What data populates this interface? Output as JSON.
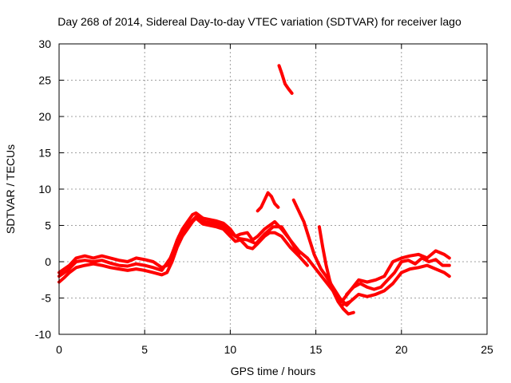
{
  "chart_data": {
    "type": "line",
    "title": "Day 268 of 2014, Sidereal Day-to-day VTEC variation (SDTVAR) for receiver lago",
    "xlabel": "GPS time / hours",
    "ylabel": "SDTVAR / TECUs",
    "xlim": [
      0,
      25
    ],
    "ylim": [
      -10,
      30
    ],
    "xticks": [
      0,
      5,
      10,
      15,
      20,
      25
    ],
    "yticks": [
      -10,
      -5,
      0,
      5,
      10,
      15,
      20,
      25,
      30
    ],
    "grid": true,
    "legend": "none",
    "color": "#ff0000",
    "series": [
      {
        "name": "trace-main-upper",
        "x": [
          0.0,
          0.3,
          0.6,
          1.0,
          1.5,
          2.0,
          2.5,
          3.0,
          3.5,
          4.0,
          4.5,
          5.0,
          5.5,
          6.0,
          6.3,
          6.6,
          6.9,
          7.2,
          7.5,
          7.8,
          8.0,
          8.4,
          8.8,
          9.2,
          9.6,
          10.0,
          10.3,
          10.6,
          11.0,
          11.3,
          11.6,
          12.0,
          12.3,
          12.6,
          13.0,
          13.5,
          14.0,
          14.5
        ],
        "y": [
          -1.5,
          -1.0,
          -0.5,
          0.5,
          0.8,
          0.5,
          0.8,
          0.5,
          0.2,
          0.0,
          0.5,
          0.3,
          0.0,
          -0.8,
          -0.5,
          1.0,
          3.0,
          4.5,
          5.5,
          6.5,
          6.7,
          6.0,
          5.8,
          5.6,
          5.3,
          4.5,
          3.5,
          3.8,
          4.0,
          3.0,
          3.5,
          4.5,
          5.0,
          5.5,
          4.5,
          3.0,
          1.5,
          0.5
        ]
      },
      {
        "name": "trace-main-lower",
        "x": [
          0.0,
          0.3,
          0.6,
          1.0,
          1.5,
          2.0,
          2.5,
          3.0,
          3.5,
          4.0,
          4.5,
          5.0,
          5.5,
          6.0,
          6.3,
          6.6,
          6.9,
          7.2,
          7.5,
          7.8,
          8.0,
          8.4,
          8.8,
          9.2,
          9.6,
          10.0,
          10.3,
          10.6,
          11.0,
          11.3,
          11.6,
          12.0,
          12.3,
          12.6,
          13.0,
          13.5,
          14.0,
          14.5
        ],
        "y": [
          -2.8,
          -2.2,
          -1.5,
          -0.8,
          -0.5,
          -0.3,
          -0.5,
          -0.8,
          -1.0,
          -1.2,
          -1.0,
          -1.2,
          -1.5,
          -1.8,
          -1.5,
          0.0,
          2.0,
          3.5,
          4.5,
          5.5,
          6.0,
          5.2,
          5.0,
          4.8,
          4.5,
          3.5,
          2.8,
          3.0,
          2.0,
          1.8,
          2.5,
          3.5,
          4.0,
          4.0,
          3.5,
          2.0,
          0.8,
          -0.5
        ]
      },
      {
        "name": "trace-main-mid",
        "x": [
          0.0,
          0.5,
          1.0,
          1.5,
          2.0,
          2.5,
          3.0,
          3.5,
          4.0,
          4.5,
          5.0,
          5.5,
          6.0,
          6.5,
          7.0,
          7.5,
          8.0,
          8.5,
          9.0,
          9.5,
          10.0,
          10.5,
          11.0,
          11.5,
          12.0,
          12.5,
          13.0,
          13.5,
          14.0
        ],
        "y": [
          -2.0,
          -1.2,
          0.0,
          0.2,
          0.0,
          0.2,
          -0.2,
          -0.5,
          -0.6,
          -0.3,
          -0.5,
          -0.8,
          -1.2,
          0.5,
          3.5,
          5.0,
          6.2,
          5.5,
          5.3,
          5.0,
          4.0,
          3.2,
          3.0,
          2.5,
          3.8,
          4.8,
          4.8,
          3.0,
          1.0
        ]
      },
      {
        "name": "trace-bump-12h",
        "x": [
          11.6,
          11.8,
          12.0,
          12.2,
          12.4,
          12.6,
          12.8
        ],
        "y": [
          7.0,
          7.5,
          8.5,
          9.5,
          9.0,
          8.0,
          7.5
        ]
      },
      {
        "name": "trace-spike-13h",
        "x": [
          12.85,
          13.0,
          13.2,
          13.4,
          13.6
        ],
        "y": [
          27.0,
          26.0,
          24.5,
          23.8,
          23.2
        ]
      },
      {
        "name": "trace-drop-14h",
        "x": [
          13.7,
          13.9,
          14.1,
          14.3,
          14.5,
          14.7,
          14.9,
          15.1,
          15.3,
          15.6,
          16.0,
          16.4,
          16.8,
          17.0
        ],
        "y": [
          8.5,
          7.5,
          6.5,
          5.5,
          4.0,
          2.5,
          1.0,
          0.0,
          -1.0,
          -2.0,
          -3.5,
          -5.0,
          -6.0,
          -5.5
        ]
      },
      {
        "name": "trace-drop-15h",
        "x": [
          15.2,
          15.4,
          15.6,
          15.8,
          16.0,
          16.3,
          16.6,
          16.9,
          17.2
        ],
        "y": [
          4.8,
          2.0,
          -0.5,
          -2.5,
          -4.0,
          -5.5,
          -6.5,
          -7.2,
          -7.0
        ]
      },
      {
        "name": "trace-late-upper",
        "x": [
          14.5,
          15.0,
          15.5,
          16.0,
          16.5,
          17.0,
          17.5,
          18.0,
          18.5,
          19.0,
          19.5,
          20.0,
          20.5,
          21.0,
          21.5,
          22.0,
          22.5,
          22.8
        ],
        "y": [
          0.5,
          -1.0,
          -2.5,
          -4.0,
          -5.5,
          -4.0,
          -2.5,
          -2.8,
          -2.5,
          -2.0,
          0.0,
          0.5,
          0.8,
          1.0,
          0.5,
          1.5,
          1.0,
          0.5
        ]
      },
      {
        "name": "trace-late-lower",
        "x": [
          16.5,
          17.0,
          17.5,
          18.0,
          18.5,
          19.0,
          19.5,
          20.0,
          20.5,
          21.0,
          21.5,
          22.0,
          22.5,
          22.8
        ],
        "y": [
          -6.0,
          -5.5,
          -4.5,
          -4.8,
          -4.5,
          -4.0,
          -3.0,
          -1.5,
          -1.0,
          -0.8,
          -0.5,
          -1.0,
          -1.5,
          -2.0
        ]
      },
      {
        "name": "trace-late-mid",
        "x": [
          16.8,
          17.2,
          17.6,
          18.0,
          18.4,
          18.8,
          19.2,
          19.6,
          20.0,
          20.4,
          20.8,
          21.2,
          21.6,
          22.0,
          22.4,
          22.8
        ],
        "y": [
          -4.5,
          -3.5,
          -3.0,
          -3.5,
          -3.8,
          -3.5,
          -2.5,
          -1.5,
          0.0,
          0.2,
          -0.3,
          0.5,
          0.0,
          0.3,
          -0.5,
          -0.5
        ]
      }
    ]
  }
}
